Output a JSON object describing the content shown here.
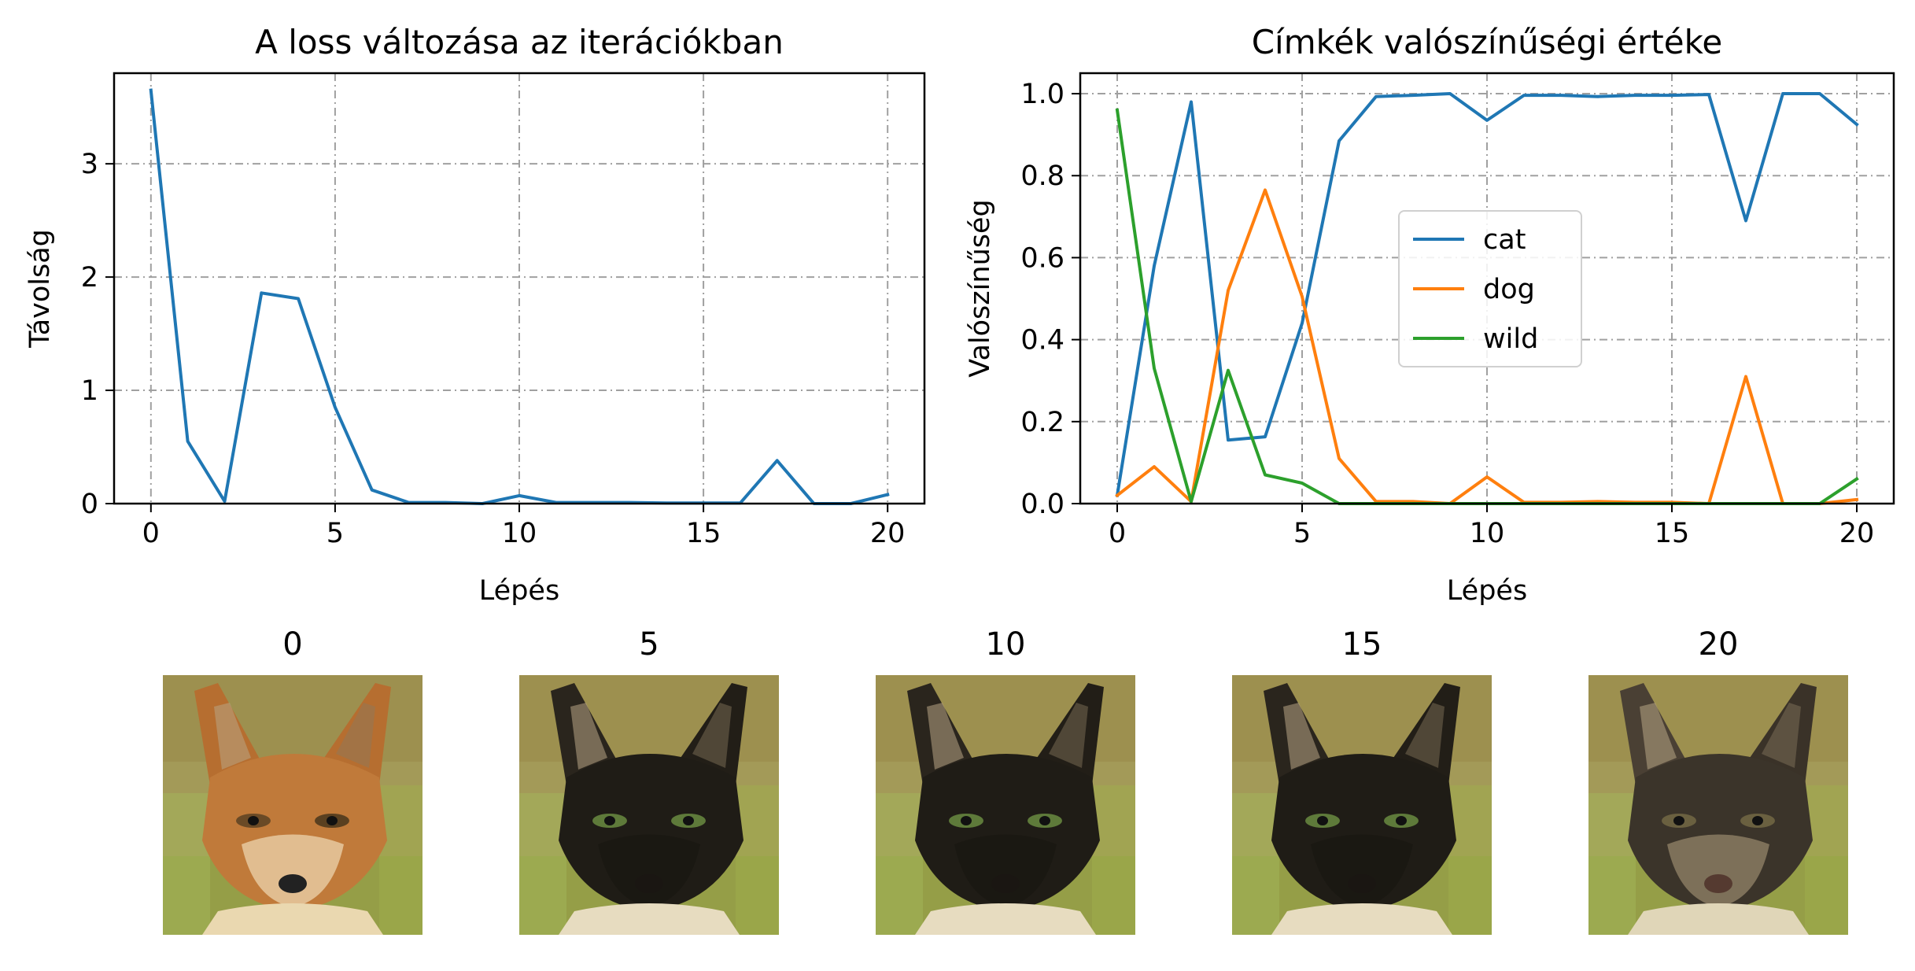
{
  "chart_data": [
    {
      "type": "line",
      "title": "A loss változása az iterációkban",
      "xlabel": "Lépés",
      "ylabel": "Távolság",
      "xlim": [
        -1,
        21
      ],
      "ylim": [
        0,
        3.8
      ],
      "xticks": [
        0,
        5,
        10,
        15,
        20
      ],
      "yticks": [
        0,
        1,
        2,
        3
      ],
      "grid": true,
      "x": [
        0,
        1,
        2,
        3,
        4,
        5,
        6,
        7,
        8,
        9,
        10,
        11,
        12,
        13,
        14,
        15,
        16,
        17,
        18,
        19,
        20
      ],
      "series": [
        {
          "values": [
            3.65,
            0.55,
            0.02,
            1.86,
            1.81,
            0.85,
            0.12,
            0.01,
            0.01,
            0.0,
            0.07,
            0.01,
            0.01,
            0.01,
            0.005,
            0.005,
            0.005,
            0.38,
            0.0,
            0.0,
            0.08
          ],
          "color": "#1f77b4"
        }
      ]
    },
    {
      "type": "line",
      "title": "Címkék valószínűségi értéke",
      "xlabel": "Lépés",
      "ylabel": "Valószínűség",
      "xlim": [
        -1,
        21
      ],
      "ylim": [
        0,
        1.05
      ],
      "xticks": [
        0,
        5,
        10,
        15,
        20
      ],
      "yticks": [
        0.0,
        0.2,
        0.4,
        0.6,
        0.8,
        1.0
      ],
      "grid": true,
      "legend_position": "center",
      "x": [
        0,
        1,
        2,
        3,
        4,
        5,
        6,
        7,
        8,
        9,
        10,
        11,
        12,
        13,
        14,
        15,
        16,
        17,
        18,
        19,
        20
      ],
      "series": [
        {
          "name": "cat",
          "color": "#1f77b4",
          "values": [
            0.02,
            0.58,
            0.98,
            0.155,
            0.163,
            0.44,
            0.885,
            0.993,
            0.996,
            1.0,
            0.935,
            0.996,
            0.996,
            0.993,
            0.996,
            0.996,
            0.998,
            0.69,
            1.0,
            1.0,
            0.925
          ]
        },
        {
          "name": "dog",
          "color": "#ff7f0e",
          "values": [
            0.02,
            0.09,
            0.005,
            0.52,
            0.765,
            0.505,
            0.11,
            0.005,
            0.005,
            0.0,
            0.065,
            0.003,
            0.003,
            0.005,
            0.003,
            0.003,
            0.0,
            0.31,
            0.0,
            0.0,
            0.01
          ]
        },
        {
          "name": "wild",
          "color": "#2ca02c",
          "values": [
            0.96,
            0.33,
            0.005,
            0.325,
            0.07,
            0.05,
            0.0,
            0.0,
            0.0,
            0.0,
            0.0,
            0.0,
            0.0,
            0.0,
            0.0,
            0.0,
            0.0,
            0.0,
            0.0,
            0.0,
            0.06
          ]
        }
      ]
    }
  ],
  "thumbnails": [
    {
      "label": "0",
      "kind": "fox"
    },
    {
      "label": "5",
      "kind": "black-cat"
    },
    {
      "label": "10",
      "kind": "black-cat"
    },
    {
      "label": "15",
      "kind": "black-cat"
    },
    {
      "label": "20",
      "kind": "tabby-cat"
    }
  ]
}
